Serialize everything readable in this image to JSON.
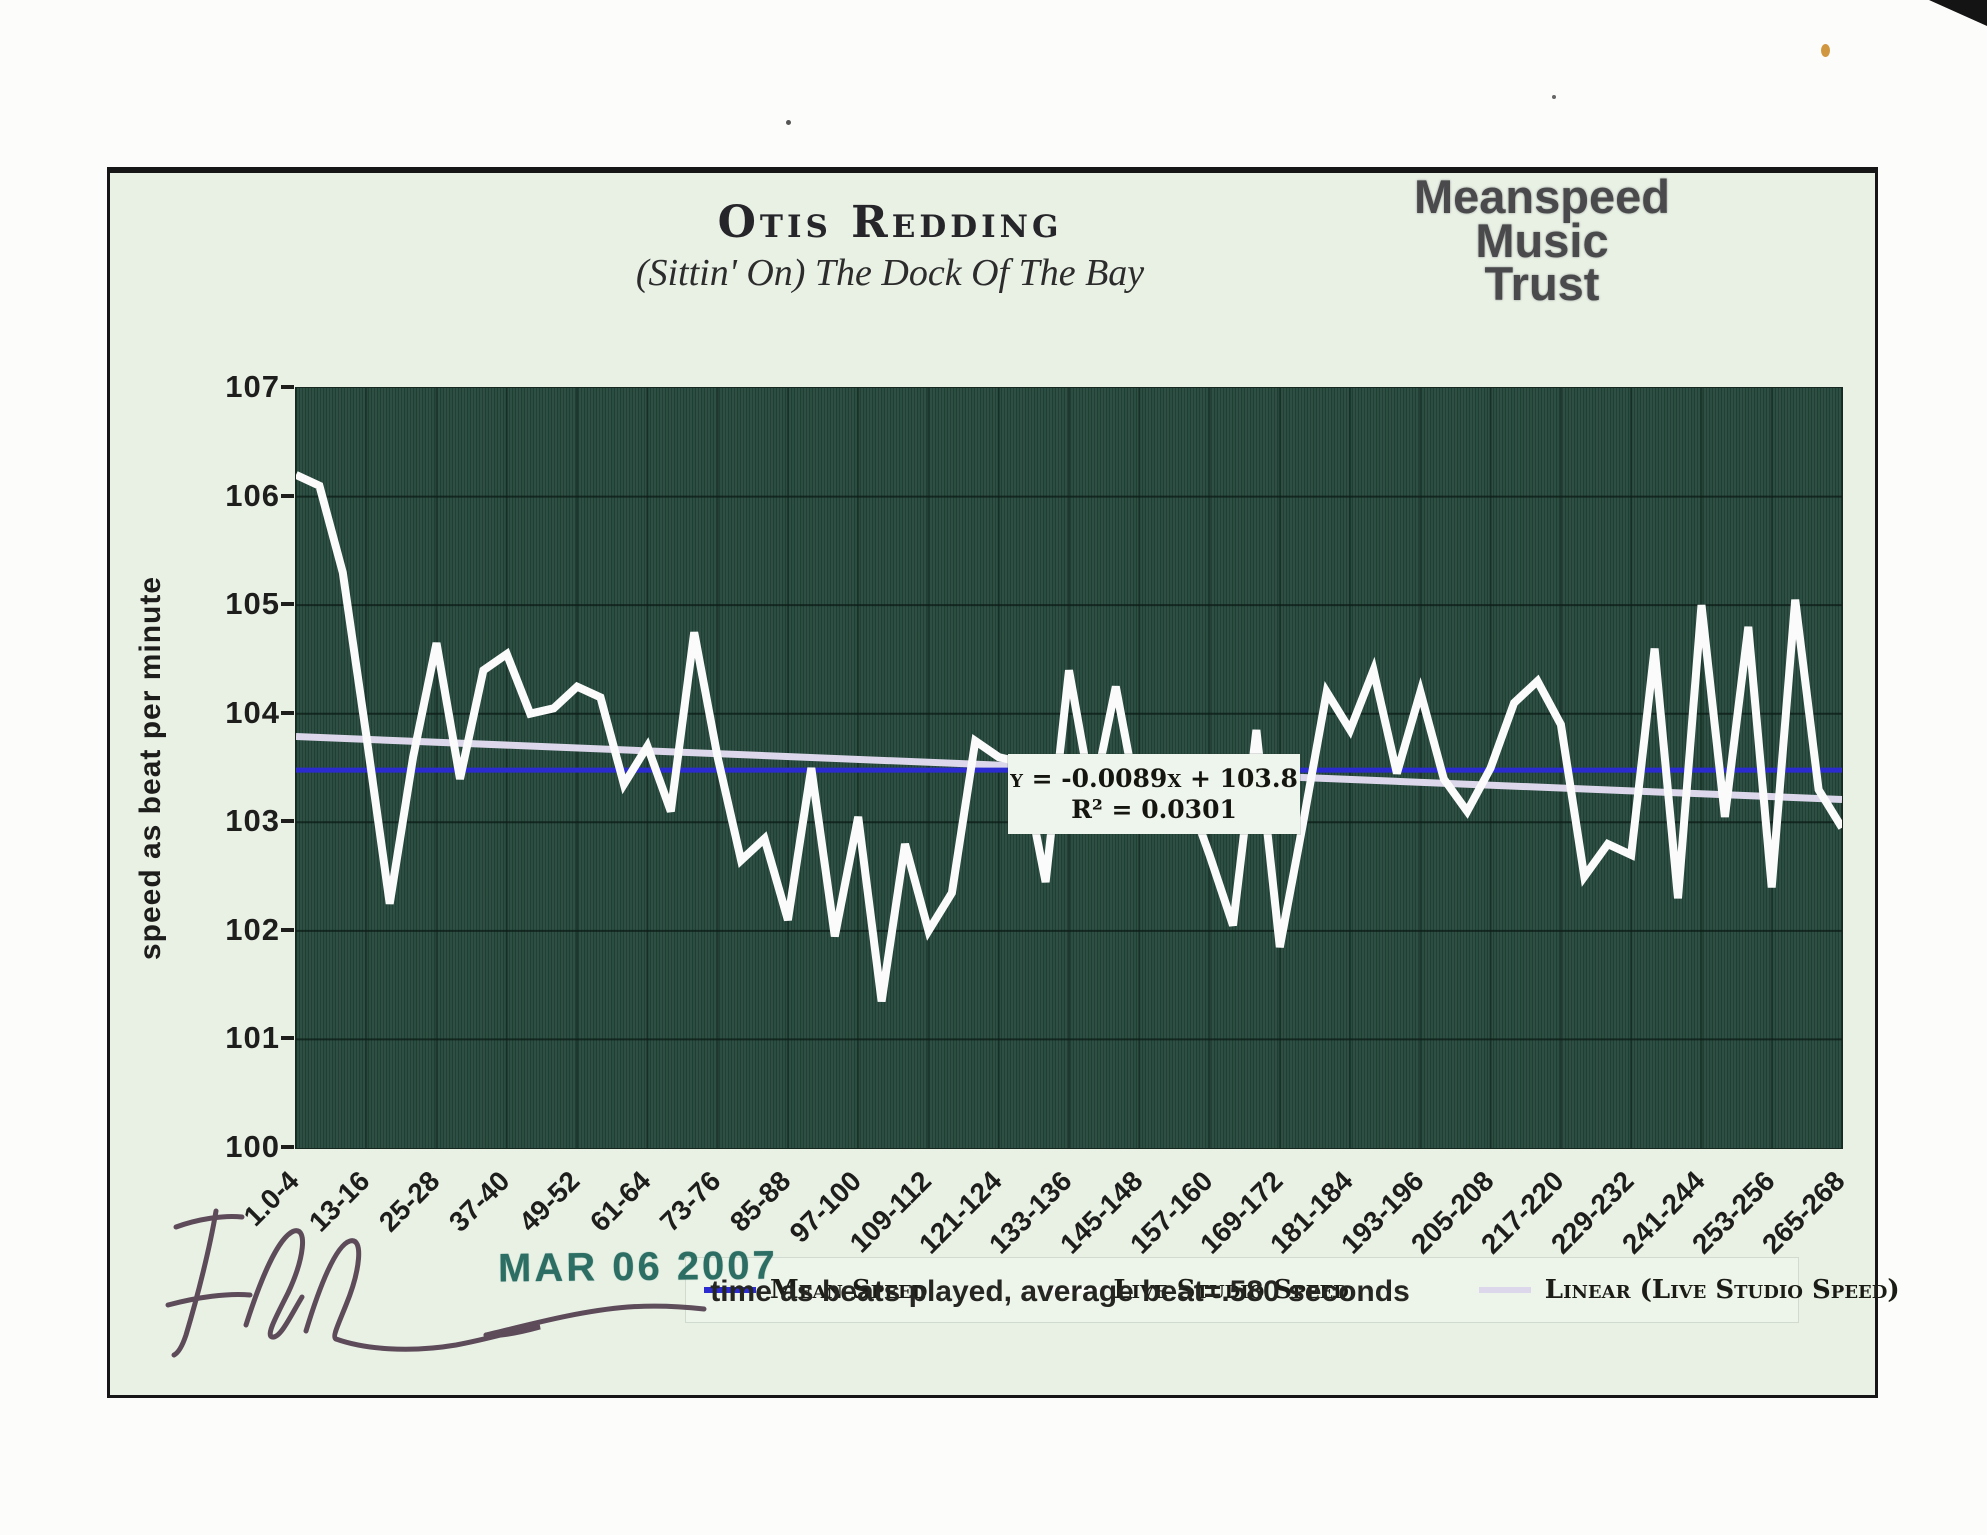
{
  "header": {
    "artist": "Otis Redding",
    "song": "(Sittin' On) The Dock Of The Bay"
  },
  "stamp": {
    "line1": "Meanspeed",
    "line2": "Music",
    "line3": "Trust"
  },
  "equation": {
    "line1": "y = -0.0089x + 103.8",
    "line2": "R² = 0.0301"
  },
  "legend": {
    "items": [
      {
        "label": "Mean Speed",
        "color": "#2b2bd0"
      },
      {
        "label": "Live Studio Speed",
        "color": "#ffffff"
      },
      {
        "label": "Linear (Live Studio Speed)",
        "color": "#dcd7ea"
      }
    ]
  },
  "axes": {
    "y_title": "speed as beat per minute",
    "x_caption": "time as beats played, average beat=.580 seconds"
  },
  "date_stamp": "MAR 06 2007",
  "chart_data": {
    "type": "line",
    "title": "Otis Redding — (Sittin' On) The Dock Of The Bay",
    "ylabel": "speed as beat per minute",
    "xlabel": "time as beats played, average beat=.580 seconds",
    "ylim": [
      100,
      107
    ],
    "y_ticks": [
      100,
      101,
      102,
      103,
      104,
      105,
      106,
      107
    ],
    "grid": true,
    "legend_position": "bottom-inside",
    "n_points": 67,
    "x_tick_labels": [
      "1.0-4",
      "13-16",
      "25-28",
      "37-40",
      "49-52",
      "61-64",
      "73-76",
      "85-88",
      "97-100",
      "109-112",
      "121-124",
      "133-136",
      "145-148",
      "157-160",
      "169-172",
      "181-184",
      "193-196",
      "205-208",
      "217-220",
      "229-232",
      "241-244",
      "253-256",
      "265-268"
    ],
    "series": [
      {
        "name": "LIVE STUDIO SPEED",
        "color": "#fbfbfb",
        "values": [
          106.2,
          106.1,
          105.3,
          103.8,
          102.25,
          103.6,
          104.65,
          103.4,
          104.4,
          104.55,
          104.0,
          104.05,
          104.25,
          104.15,
          103.35,
          103.7,
          103.1,
          104.75,
          103.6,
          102.65,
          102.85,
          102.1,
          103.5,
          101.95,
          103.05,
          101.35,
          102.8,
          102.0,
          102.35,
          103.75,
          103.6,
          103.55,
          102.45,
          104.4,
          103.2,
          104.25,
          103.1,
          103.5,
          103.3,
          102.7,
          102.05,
          103.85,
          101.85,
          103.0,
          104.2,
          103.85,
          104.4,
          103.45,
          104.2,
          103.4,
          103.1,
          103.5,
          104.1,
          104.3,
          103.9,
          102.5,
          102.8,
          102.7,
          104.6,
          102.3,
          105.0,
          103.05,
          104.8,
          102.4,
          105.05,
          103.3,
          102.95
        ]
      },
      {
        "name": "MEAN SPEED",
        "color": "#2b2bd0",
        "constant": 103.48
      },
      {
        "name": "LINEAR (LIVE STUDIO SPEED)",
        "color": "#dcd7ea",
        "trend": {
          "start": 103.79,
          "end": 103.21,
          "equation": "y = -0.0089x + 103.8",
          "r2": "0.0301"
        }
      }
    ]
  }
}
